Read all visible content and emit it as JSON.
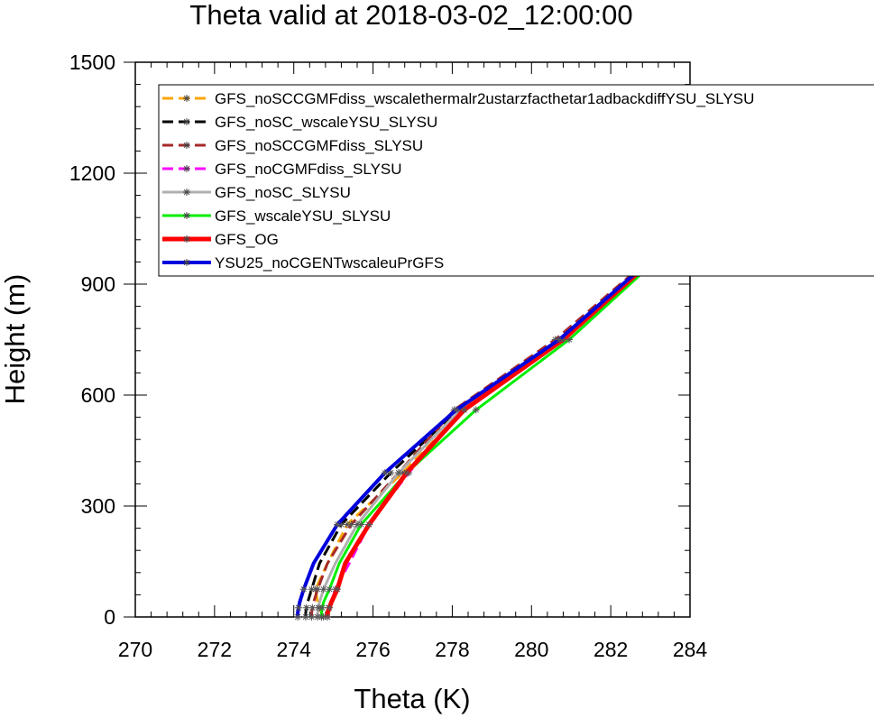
{
  "chart_data": {
    "type": "line",
    "title": "Theta valid at 2018-03-02_12:00:00",
    "xlabel": "Theta (K)",
    "ylabel": "Height (m)",
    "xlim": [
      270,
      284
    ],
    "ylim": [
      0,
      1500
    ],
    "xticks": [
      "270",
      "272",
      "274",
      "276",
      "278",
      "280",
      "282",
      "284"
    ],
    "yticks": [
      "0",
      "300",
      "600",
      "900",
      "1200",
      "1500"
    ],
    "grid": false,
    "legend_position": "top-left",
    "series": [
      {
        "name": "GFS_noSCCGMFdiss_wscalethermalr2ustarzfacthetar1adbackdiffYSU_SLYSU",
        "color": "#ffa500",
        "dash": true,
        "width": 3,
        "points": [
          [
            274.75,
            0
          ],
          [
            274.7,
            10
          ],
          [
            274.65,
            25
          ],
          [
            274.6,
            40
          ],
          [
            274.55,
            75
          ],
          [
            274.85,
            145
          ],
          [
            275.35,
            250
          ],
          [
            276.75,
            390
          ],
          [
            278.3,
            560
          ],
          [
            280.8,
            750
          ],
          [
            283.05,
            965
          ],
          [
            284.0,
            1065
          ]
        ]
      },
      {
        "name": "GFS_noSC_wscaleYSU_SLYSU",
        "color": "#000000",
        "dash": true,
        "width": 3,
        "points": [
          [
            274.3,
            0
          ],
          [
            274.3,
            10
          ],
          [
            274.32,
            25
          ],
          [
            274.35,
            40
          ],
          [
            274.45,
            75
          ],
          [
            274.65,
            145
          ],
          [
            275.2,
            250
          ],
          [
            276.45,
            390
          ],
          [
            278.15,
            560
          ],
          [
            280.75,
            750
          ],
          [
            283.0,
            965
          ],
          [
            284.0,
            1080
          ]
        ]
      },
      {
        "name": "GFS_noSCCGMFdiss_SLYSU",
        "color": "#a52a2a",
        "dash": true,
        "width": 3,
        "points": [
          [
            274.45,
            0
          ],
          [
            274.45,
            10
          ],
          [
            274.47,
            25
          ],
          [
            274.5,
            40
          ],
          [
            274.6,
            75
          ],
          [
            274.85,
            145
          ],
          [
            275.45,
            250
          ],
          [
            276.65,
            390
          ],
          [
            278.05,
            560
          ],
          [
            280.6,
            750
          ],
          [
            282.95,
            965
          ],
          [
            284.0,
            1085
          ]
        ]
      },
      {
        "name": "GFS_noCGMFdiss_SLYSU",
        "color": "#ff00ff",
        "dash": true,
        "width": 3,
        "points": [
          [
            274.85,
            0
          ],
          [
            274.85,
            10
          ],
          [
            274.88,
            25
          ],
          [
            274.95,
            40
          ],
          [
            275.05,
            75
          ],
          [
            275.4,
            145
          ],
          [
            275.9,
            250
          ],
          [
            276.9,
            390
          ],
          [
            278.3,
            560
          ],
          [
            280.75,
            750
          ],
          [
            283.0,
            965
          ],
          [
            284.0,
            1075
          ]
        ]
      },
      {
        "name": "GFS_noSC_SLYSU",
        "color": "#b0b0b0",
        "dash": false,
        "width": 3,
        "points": [
          [
            274.6,
            0
          ],
          [
            274.6,
            10
          ],
          [
            274.62,
            25
          ],
          [
            274.65,
            40
          ],
          [
            274.75,
            75
          ],
          [
            275.05,
            145
          ],
          [
            275.6,
            250
          ],
          [
            276.65,
            390
          ],
          [
            278.2,
            560
          ],
          [
            280.7,
            750
          ],
          [
            283.0,
            965
          ],
          [
            284.0,
            1075
          ]
        ]
      },
      {
        "name": "GFS_wscaleYSU_SLYSU",
        "color": "#00ee00",
        "dash": false,
        "width": 3,
        "points": [
          [
            274.7,
            0
          ],
          [
            274.7,
            10
          ],
          [
            274.72,
            25
          ],
          [
            274.75,
            40
          ],
          [
            274.9,
            75
          ],
          [
            275.15,
            145
          ],
          [
            275.7,
            250
          ],
          [
            276.85,
            390
          ],
          [
            278.6,
            560
          ],
          [
            280.95,
            750
          ],
          [
            283.15,
            965
          ],
          [
            284.0,
            1070
          ]
        ]
      },
      {
        "name": "GFS_OG",
        "color": "#ff0000",
        "dash": false,
        "width": 5,
        "points": [
          [
            274.85,
            0
          ],
          [
            274.85,
            10
          ],
          [
            274.9,
            25
          ],
          [
            274.95,
            40
          ],
          [
            275.1,
            75
          ],
          [
            275.3,
            145
          ],
          [
            275.9,
            250
          ],
          [
            276.85,
            390
          ],
          [
            278.3,
            560
          ],
          [
            280.8,
            750
          ],
          [
            283.05,
            965
          ],
          [
            284.0,
            1075
          ]
        ]
      },
      {
        "name": "YSU25_noCGENTwscaleuPrGFS",
        "color": "#0000dd",
        "dash": false,
        "width": 4,
        "points": [
          [
            274.1,
            0
          ],
          [
            274.1,
            10
          ],
          [
            274.12,
            25
          ],
          [
            274.15,
            40
          ],
          [
            274.25,
            75
          ],
          [
            274.5,
            145
          ],
          [
            275.1,
            250
          ],
          [
            276.3,
            390
          ],
          [
            278.1,
            560
          ],
          [
            280.7,
            750
          ],
          [
            283.0,
            965
          ],
          [
            284.0,
            1080
          ]
        ]
      }
    ]
  }
}
